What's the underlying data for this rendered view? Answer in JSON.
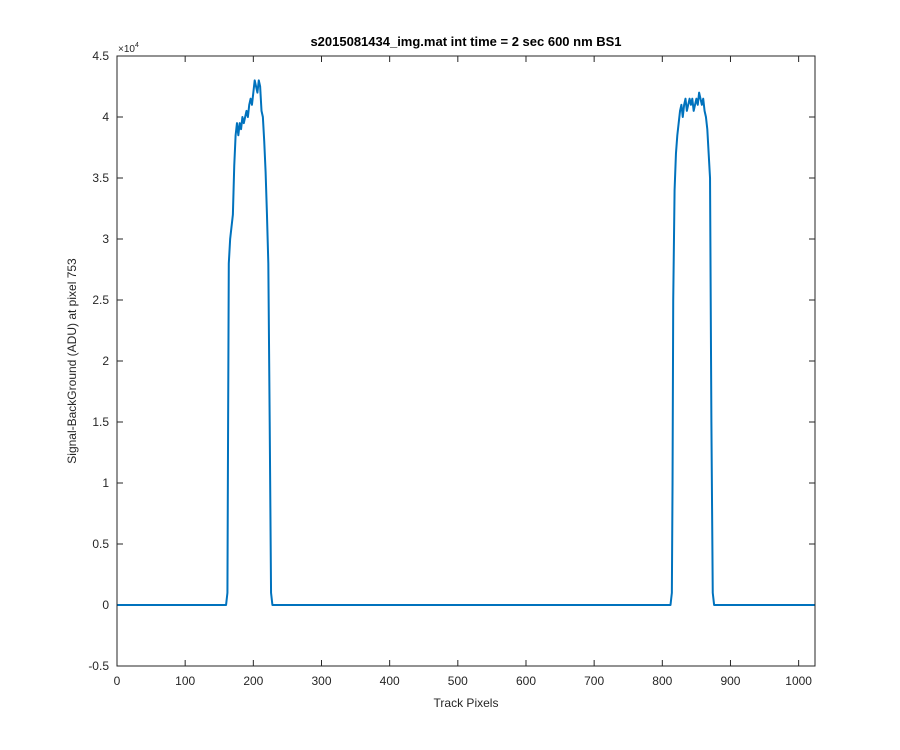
{
  "chart_data": {
    "type": "line",
    "title": "s2015081434_img.mat int time = 2 sec  600 nm BS1",
    "xlabel": "Track Pixels",
    "ylabel": "Signal-BackGround (ADU) at pixel 753",
    "y_exponent_label": "×10",
    "y_exponent_power": "4",
    "xlim": [
      0,
      1024
    ],
    "ylim": [
      -0.5,
      4.5
    ],
    "y_scale_factor": 10000,
    "x_ticks": [
      "0",
      "100",
      "200",
      "300",
      "400",
      "500",
      "600",
      "700",
      "800",
      "900",
      "1000"
    ],
    "y_ticks": [
      "-0.5",
      "0",
      "0.5",
      "1",
      "1.5",
      "2",
      "2.5",
      "3",
      "3.5",
      "4",
      "4.5"
    ],
    "grid": false,
    "line_color": "#0072BD",
    "series": [
      {
        "x": [
          0,
          100,
          160,
          162,
          163,
          164,
          166,
          170,
          172,
          174,
          176,
          178,
          180,
          182,
          184,
          186,
          188,
          190,
          192,
          194,
          196,
          198,
          200,
          202,
          204,
          206,
          208,
          210,
          212,
          214,
          216,
          218,
          220,
          222,
          224,
          226,
          228,
          230,
          300,
          400,
          500,
          600,
          700,
          800,
          812,
          814,
          815,
          816,
          818,
          820,
          822,
          824,
          826,
          828,
          830,
          832,
          834,
          836,
          838,
          840,
          842,
          844,
          846,
          848,
          850,
          852,
          854,
          856,
          858,
          860,
          862,
          864,
          866,
          868,
          870,
          872,
          874,
          876,
          878,
          880,
          900,
          1000,
          1024
        ],
        "y": [
          0,
          0,
          0,
          0.1,
          1.5,
          2.8,
          3.0,
          3.2,
          3.6,
          3.85,
          3.95,
          3.85,
          3.95,
          3.9,
          4.0,
          3.95,
          4.0,
          4.05,
          4.0,
          4.1,
          4.15,
          4.1,
          4.2,
          4.3,
          4.25,
          4.2,
          4.3,
          4.25,
          4.05,
          4.0,
          3.8,
          3.55,
          3.2,
          2.8,
          1.5,
          0.1,
          0,
          0,
          0,
          0,
          0,
          0,
          0,
          0,
          0,
          0.1,
          1.0,
          2.5,
          3.4,
          3.7,
          3.85,
          3.95,
          4.05,
          4.1,
          4.0,
          4.1,
          4.15,
          4.05,
          4.1,
          4.15,
          4.1,
          4.15,
          4.05,
          4.1,
          4.15,
          4.1,
          4.2,
          4.15,
          4.1,
          4.15,
          4.05,
          4.0,
          3.9,
          3.7,
          3.5,
          1.5,
          0.1,
          0,
          0,
          0,
          0,
          0,
          0
        ]
      }
    ]
  }
}
